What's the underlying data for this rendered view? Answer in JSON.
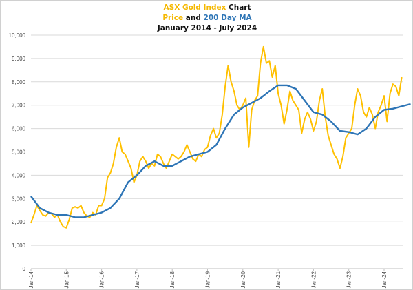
{
  "title": {
    "line1_a": "ASX Gold Index",
    "line1_b": " Chart",
    "line2_a": "Price",
    "line2_b": " and ",
    "line2_c": "200 Day MA",
    "line3": "January 2014 - July 2024"
  },
  "colors": {
    "price": "#FFC000",
    "ma": "#2E75B6",
    "grid": "#d9d9d9"
  },
  "chart_data": {
    "type": "line",
    "title": "ASX Gold Index Chart — Price and 200 Day MA, January 2014 - July 2024",
    "xlabel": "",
    "ylabel": "",
    "ylim": [
      0,
      10000
    ],
    "xlim": [
      "2014-01",
      "2024-07"
    ],
    "grid": true,
    "y_ticks": [
      "0",
      "1,000",
      "2,000",
      "3,000",
      "4,000",
      "5,000",
      "6,000",
      "7,000",
      "8,000",
      "9,000",
      "10,000"
    ],
    "x_ticks": [
      "Jan-14",
      "Jan-15",
      "Jan-16",
      "Jan-17",
      "Jan-18",
      "Jan-19",
      "Jan-20",
      "Jan-21",
      "Jan-22",
      "Jan-23",
      "Jan-24"
    ],
    "series": [
      {
        "name": "Price",
        "start": "2014-01",
        "frequency": "monthly",
        "values": [
          1950,
          2300,
          2700,
          2500,
          2300,
          2250,
          2400,
          2350,
          2200,
          2300,
          2000,
          1800,
          1750,
          2100,
          2600,
          2650,
          2600,
          2700,
          2400,
          2250,
          2200,
          2400,
          2300,
          2700,
          2700,
          3000,
          3900,
          4100,
          4500,
          5200,
          5600,
          5000,
          4900,
          4600,
          4300,
          3700,
          4000,
          4600,
          4800,
          4600,
          4300,
          4500,
          4400,
          4900,
          4800,
          4500,
          4300,
          4600,
          4900,
          4800,
          4700,
          4800,
          5000,
          5300,
          5000,
          4700,
          4600,
          4900,
          4800,
          5100,
          5200,
          5700,
          6000,
          5600,
          5800,
          6600,
          7800,
          8700,
          8000,
          7600,
          7000,
          6800,
          7000,
          7300,
          5200,
          6800,
          7200,
          7400,
          8800,
          9500,
          8800,
          8900,
          8200,
          8700,
          7500,
          7000,
          6200,
          6800,
          7600,
          7200,
          7000,
          6800,
          5800,
          6400,
          6700,
          6400,
          5900,
          6300,
          7200,
          7700,
          6500,
          5700,
          5300,
          4900,
          4700,
          4300,
          4800,
          5600,
          5800,
          6000,
          7000,
          7700,
          7400,
          6700,
          6500,
          6900,
          6600,
          6000,
          6700,
          7000,
          7400,
          6300,
          7500,
          7900,
          7800,
          7400,
          8200
        ]
      },
      {
        "name": "200 Day MA",
        "start": "2014-01",
        "frequency": "quarterly",
        "values": [
          3100,
          2600,
          2400,
          2300,
          2300,
          2200,
          2200,
          2300,
          2400,
          2600,
          3000,
          3700,
          4000,
          4400,
          4600,
          4400,
          4400,
          4600,
          4800,
          4900,
          5000,
          5300,
          6000,
          6600,
          6900,
          7100,
          7300,
          7600,
          7850,
          7850,
          7700,
          7200,
          6700,
          6600,
          6300,
          5900,
          5850,
          5750,
          6000,
          6500,
          6800,
          6850,
          6950,
          7050
        ]
      }
    ]
  }
}
